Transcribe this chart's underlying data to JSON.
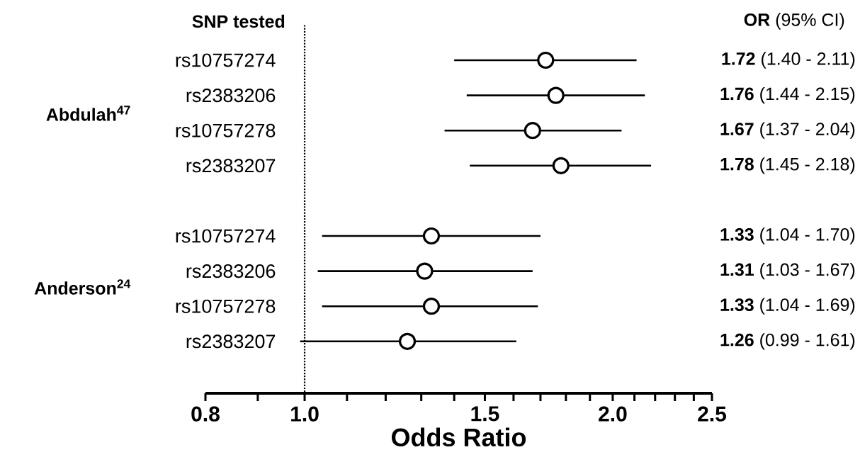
{
  "chart_data": {
    "type": "scatter",
    "orientation": "horizontal",
    "xlabel": "Odds Ratio",
    "categories": [
      "rs10757274",
      "rs2383206",
      "rs10757278",
      "rs2383207",
      null,
      "rs10757274",
      "rs2383206",
      "rs10757278",
      "rs2383207"
    ],
    "values": [
      1.72,
      1.76,
      1.67,
      1.78,
      null,
      1.33,
      1.31,
      1.33,
      1.26
    ],
    "errors": [
      [
        1.4,
        2.11
      ],
      [
        1.44,
        2.15
      ],
      [
        1.37,
        2.04
      ],
      [
        1.45,
        2.18
      ],
      null,
      [
        1.04,
        1.7
      ],
      [
        1.03,
        1.67
      ],
      [
        1.04,
        1.69
      ],
      [
        0.99,
        1.61
      ]
    ],
    "value_labels": [
      "**1.72** (1.40 - 2.11)",
      "**1.76** (1.44 - 2.15)",
      "**1.67** (1.37 - 2.04)",
      "**1.78** (1.45 - 2.18)",
      null,
      "**1.33** (1.04 - 1.70)",
      "**1.31** (1.03 - 1.67)",
      "**1.33** (1.04 - 1.69)",
      "**1.26** (0.99 - 1.61)"
    ],
    "color": "#000000",
    "marker": "circle",
    "log": "x",
    "xlim": [
      0.8,
      2.5
    ],
    "xticks": [
      0.8,
      {
        "value": 0.9,
        "label": null
      },
      {
        "value": 1,
        "label": "1.0"
      },
      {
        "value": 1.1,
        "label": null
      },
      {
        "value": 1.2,
        "label": null
      },
      {
        "value": 1.3,
        "label": null
      },
      {
        "value": 1.4,
        "label": null
      },
      1.5,
      {
        "value": 1.6,
        "label": null
      },
      {
        "value": 1.7,
        "label": null
      },
      {
        "value": 1.8,
        "label": null
      },
      {
        "value": 1.9,
        "label": null
      },
      {
        "value": 2,
        "label": "2.0"
      },
      {
        "value": 2.1,
        "label": null
      },
      {
        "value": 2.2,
        "label": null
      },
      {
        "value": 2.3,
        "label": null
      },
      {
        "value": 2.4,
        "label": null
      },
      2.5
    ],
    "ref_lines": [
      {
        "axis": "x",
        "value": 1,
        "line_style": "dotted",
        "color": "#000000"
      }
    ],
    "annotations": [
      "SNP tested",
      "**OR** (95% CI)",
      "Abdulah$^{47}$",
      "Anderson$^{24}$"
    ]
  }
}
